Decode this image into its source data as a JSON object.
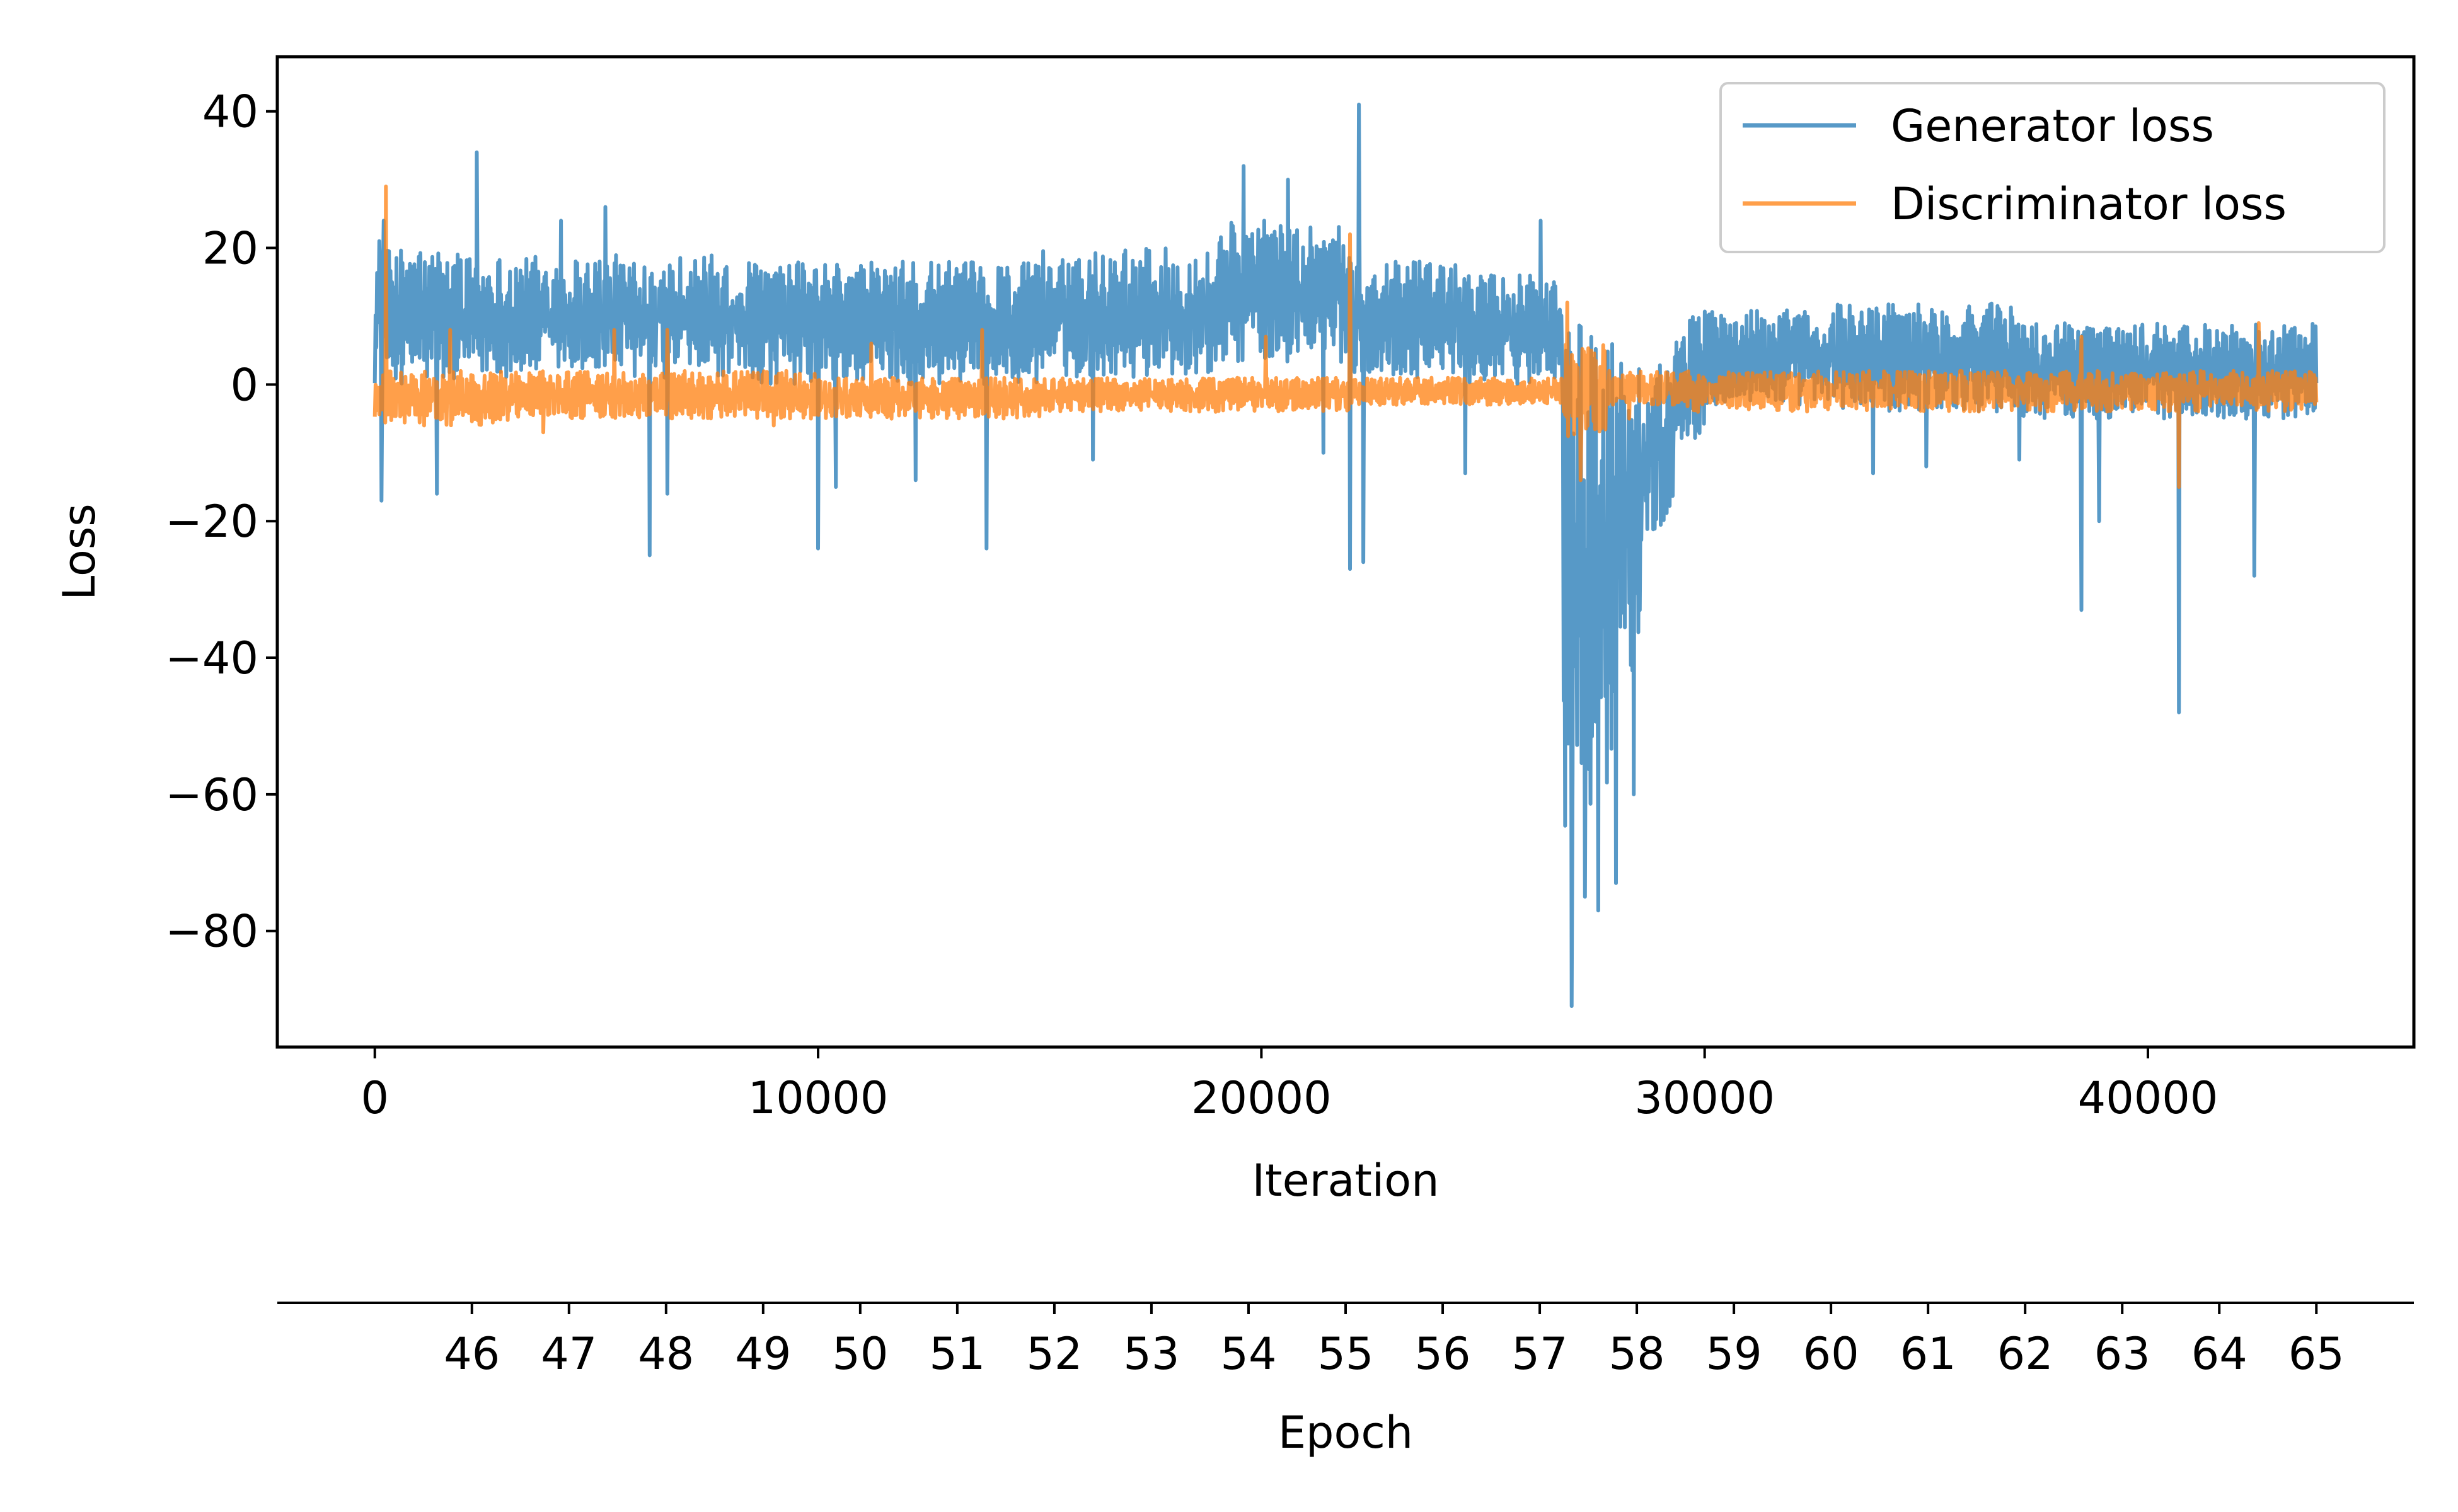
{
  "chart_data": {
    "type": "line",
    "xlabel": "Iteration",
    "ylabel": "Loss",
    "xlim": [
      -2200,
      46000
    ],
    "ylim": [
      -97,
      48
    ],
    "x_ticks": [
      0,
      10000,
      20000,
      30000,
      40000
    ],
    "y_ticks": [
      40,
      20,
      0,
      -20,
      -40,
      -60,
      -80
    ],
    "secondary_xaxis": {
      "label": "Epoch",
      "ticks": [
        46,
        47,
        48,
        49,
        50,
        51,
        52,
        53,
        54,
        55,
        56,
        57,
        58,
        59,
        60,
        61,
        62,
        63,
        64,
        65
      ],
      "iterations_per_epoch": 2190,
      "first_epoch_at_iteration": 2190
    },
    "legend_position": "upper right",
    "grid": false,
    "x_max": 43800,
    "series": [
      {
        "name": "Generator loss",
        "color": "#1f77b4",
        "opacity": 0.75,
        "band_segments": [
          [
            0,
            2000,
            0,
            20
          ],
          [
            2000,
            8000,
            1,
            19
          ],
          [
            8000,
            15000,
            0,
            18
          ],
          [
            15000,
            19000,
            1,
            20
          ],
          [
            19000,
            22000,
            3,
            24
          ],
          [
            22000,
            24500,
            1,
            18
          ],
          [
            24500,
            26800,
            0,
            16
          ],
          [
            26800,
            27400,
            -72,
            10
          ],
          [
            27400,
            28000,
            -62,
            8
          ],
          [
            28000,
            28600,
            -42,
            5
          ],
          [
            28600,
            29300,
            -22,
            3
          ],
          [
            29300,
            30000,
            -8,
            10
          ],
          [
            30000,
            33000,
            -3,
            11
          ],
          [
            33000,
            37000,
            -4,
            12
          ],
          [
            37000,
            43800,
            -5,
            9
          ]
        ],
        "spikes": [
          [
            100,
            21
          ],
          [
            150,
            -17
          ],
          [
            200,
            24
          ],
          [
            1400,
            -16
          ],
          [
            2300,
            34
          ],
          [
            4200,
            24
          ],
          [
            5200,
            26
          ],
          [
            6200,
            -25
          ],
          [
            6600,
            -16
          ],
          [
            10000,
            -24
          ],
          [
            10400,
            -15
          ],
          [
            12200,
            -14
          ],
          [
            13800,
            -24
          ],
          [
            16200,
            -11
          ],
          [
            19600,
            32
          ],
          [
            20600,
            30
          ],
          [
            21400,
            -10
          ],
          [
            22000,
            -27
          ],
          [
            22200,
            41
          ],
          [
            22300,
            -26
          ],
          [
            24600,
            -13
          ],
          [
            26300,
            24
          ],
          [
            27000,
            -91
          ],
          [
            27300,
            -75
          ],
          [
            27600,
            -77
          ],
          [
            28000,
            -73
          ],
          [
            28400,
            -60
          ],
          [
            33800,
            -13
          ],
          [
            35000,
            -12
          ],
          [
            37100,
            -11
          ],
          [
            38500,
            -33
          ],
          [
            38900,
            -20
          ],
          [
            40700,
            -48
          ],
          [
            42400,
            -28
          ]
        ]
      },
      {
        "name": "Discriminator loss",
        "color": "#ff7f0e",
        "opacity": 0.75,
        "band_segments": [
          [
            0,
            3000,
            -6,
            2
          ],
          [
            3000,
            10000,
            -5,
            2
          ],
          [
            10000,
            15000,
            -5,
            1
          ],
          [
            15000,
            19000,
            -4,
            1
          ],
          [
            19000,
            22000,
            -4,
            1
          ],
          [
            22000,
            26800,
            -3,
            1
          ],
          [
            26800,
            27800,
            -8,
            6
          ],
          [
            27800,
            29500,
            -3,
            2
          ],
          [
            29500,
            43800,
            -4,
            2
          ]
        ],
        "spikes": [
          [
            250,
            29
          ],
          [
            1700,
            8
          ],
          [
            3800,
            -7
          ],
          [
            5400,
            8
          ],
          [
            6600,
            8
          ],
          [
            9000,
            -6
          ],
          [
            11200,
            6
          ],
          [
            13700,
            8
          ],
          [
            20100,
            7
          ],
          [
            22000,
            22
          ],
          [
            26900,
            12
          ],
          [
            27200,
            -14
          ],
          [
            28300,
            -5
          ],
          [
            38500,
            7
          ],
          [
            40700,
            -15
          ],
          [
            42500,
            9
          ]
        ]
      }
    ]
  }
}
